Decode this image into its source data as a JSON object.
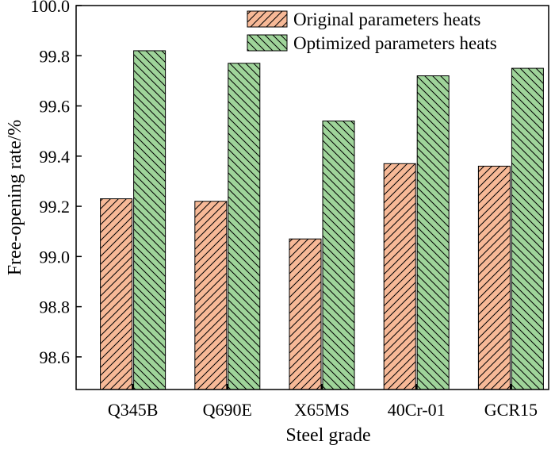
{
  "chart_data": {
    "type": "bar",
    "title": "",
    "xlabel": "Steel grade",
    "ylabel": "Free-opening rate/%",
    "categories": [
      "Q345B",
      "Q690E",
      "X65MS",
      "40Cr-01",
      "GCR15"
    ],
    "series": [
      {
        "name": "Original parameters heats",
        "values": [
          99.23,
          99.22,
          99.07,
          99.37,
          99.36
        ],
        "color": "#f7b997",
        "hatch": "forward-diagonal"
      },
      {
        "name": "Optimized parameters heats",
        "values": [
          99.82,
          99.77,
          99.54,
          99.72,
          99.75
        ],
        "color": "#9fd49a",
        "hatch": "back-diagonal"
      }
    ],
    "ylim": [
      98.47,
      100.0
    ],
    "yticks": [
      "98.6",
      "98.8",
      "99.0",
      "99.2",
      "99.4",
      "99.6",
      "99.8",
      "100.0"
    ],
    "grid": false,
    "legend_position": "top-right"
  }
}
